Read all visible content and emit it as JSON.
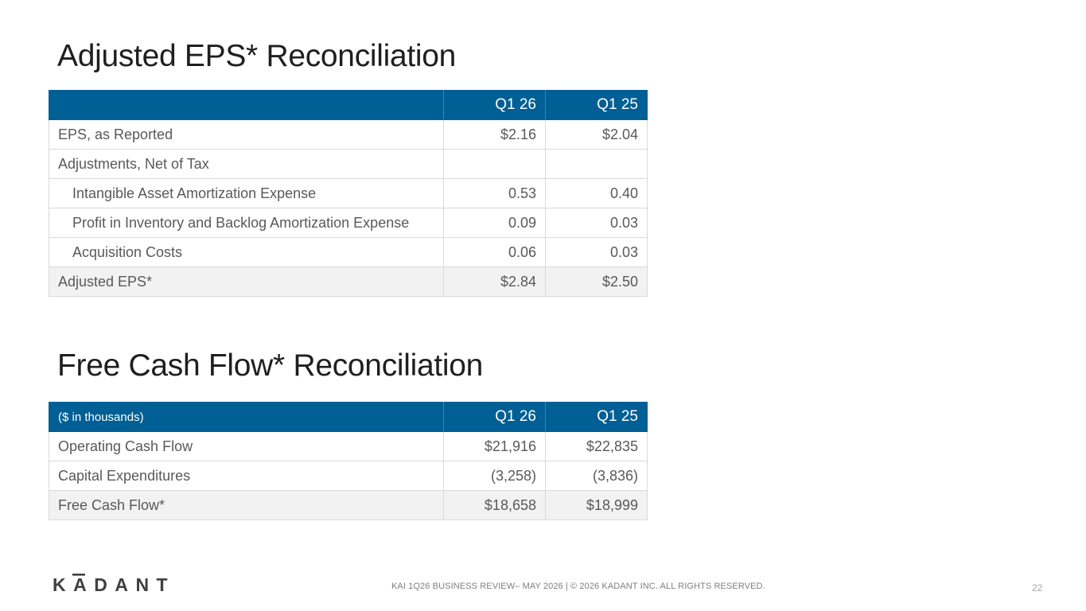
{
  "eps": {
    "title": "Adjusted EPS* Reconciliation",
    "header": {
      "label": "",
      "col1": "Q1 26",
      "col2": "Q1 25"
    },
    "rows": [
      {
        "label": "EPS, as Reported",
        "q1_26": "$2.16",
        "q1_25": "$2.04"
      },
      {
        "label": "Adjustments, Net of Tax",
        "q1_26": "",
        "q1_25": ""
      },
      {
        "label": "Intangible Asset Amortization Expense",
        "q1_26": "0.53",
        "q1_25": "0.40"
      },
      {
        "label": "Profit in Inventory and Backlog Amortization Expense",
        "q1_26": "0.09",
        "q1_25": "0.03"
      },
      {
        "label": "Acquisition Costs",
        "q1_26": "0.06",
        "q1_25": "0.03"
      },
      {
        "label": "Adjusted EPS*",
        "q1_26": "$2.84",
        "q1_25": "$2.50"
      }
    ]
  },
  "fcf": {
    "title": "Free Cash Flow* Reconciliation",
    "header": {
      "label": "($ in thousands)",
      "col1": "Q1 26",
      "col2": "Q1 25"
    },
    "rows": [
      {
        "label": "Operating Cash Flow",
        "q1_26": "$21,916",
        "q1_25": "$22,835"
      },
      {
        "label": "Capital Expenditures",
        "q1_26": "(3,258)",
        "q1_25": "(3,836)"
      },
      {
        "label": "Free Cash Flow*",
        "q1_26": "$18,658",
        "q1_25": "$18,999"
      }
    ]
  },
  "footer": {
    "logo_text": "KADANT",
    "text": "KAI 1Q26 BUSINESS REVIEW– MAY 2026  |  © 2026 KADANT INC. ALL RIGHTS RESERVED.",
    "page_number": "22"
  },
  "colors": {
    "header_blue": "#005f94",
    "total_row_bg": "#f2f2f2",
    "logo": "#404040"
  }
}
